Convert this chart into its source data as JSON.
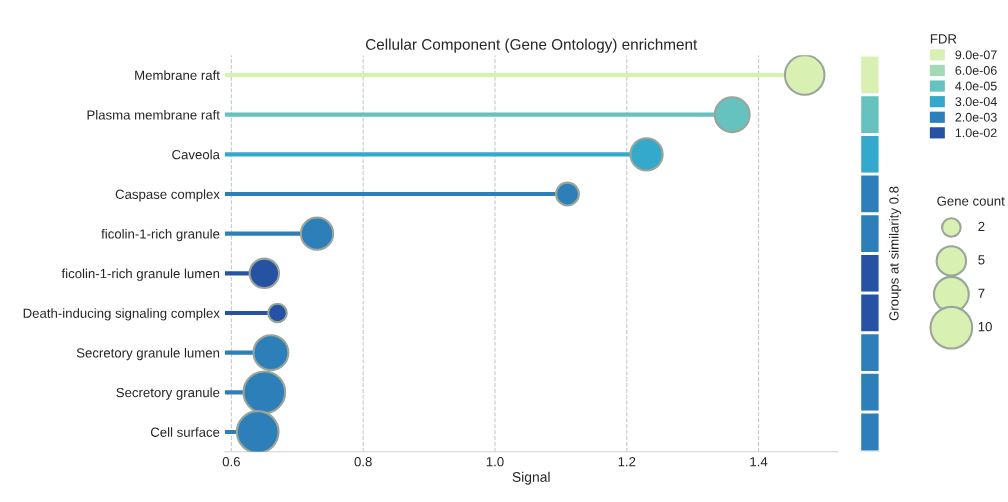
{
  "chart_data": {
    "type": "lollipop",
    "title": "Cellular Component (Gene Ontology) enrichment",
    "xlabel": "Signal",
    "orientation": "horizontal",
    "categories": [
      "Membrane raft",
      "Plasma membrane raft",
      "Caveola",
      "Caspase complex",
      "ficolin-1-rich granule",
      "ficolin-1-rich granule lumen",
      "Death-inducing signaling complex",
      "Secretory granule lumen",
      "Secretory granule",
      "Cell surface"
    ],
    "series": [
      {
        "name": "9.0e-07",
        "color": "#d9f0b3",
        "values": [
          1.47,
          null,
          null,
          null,
          null,
          null,
          null,
          null,
          null,
          null
        ],
        "sizes": [
          9,
          null,
          null,
          null,
          null,
          null,
          null,
          null,
          null,
          null
        ]
      },
      {
        "name": "6.0e-06",
        "color": "#a1dab4",
        "values": [
          null,
          null,
          null,
          null,
          null,
          null,
          null,
          null,
          null,
          null
        ]
      },
      {
        "name": "4.0e-05",
        "color": "#66c2be",
        "values": [
          null,
          1.36,
          null,
          null,
          null,
          null,
          null,
          null,
          null,
          null
        ],
        "sizes": [
          null,
          7,
          null,
          null,
          null,
          null,
          null,
          null,
          null,
          null
        ]
      },
      {
        "name": "3.0e-04",
        "color": "#35a9cc",
        "values": [
          null,
          null,
          1.23,
          null,
          null,
          null,
          null,
          null,
          null,
          null
        ],
        "sizes": [
          null,
          null,
          6,
          null,
          null,
          null,
          null,
          null,
          null,
          null
        ]
      },
      {
        "name": "2.0e-03",
        "color": "#2c7fb8",
        "values": [
          null,
          null,
          null,
          1.11,
          0.73,
          null,
          null,
          0.66,
          0.65,
          0.64
        ],
        "sizes": [
          null,
          null,
          null,
          3,
          6,
          null,
          null,
          7,
          10,
          10
        ]
      },
      {
        "name": "1.0e-02",
        "color": "#2552a3",
        "values": [
          null,
          null,
          null,
          null,
          null,
          0.65,
          0.67,
          null,
          null,
          null
        ],
        "sizes": [
          null,
          null,
          null,
          null,
          null,
          5,
          2,
          null,
          null,
          null
        ]
      }
    ],
    "size_legend": [
      2,
      5,
      7,
      10
    ],
    "legend_title": "FDR",
    "legend": "top right",
    "xlim": [
      0.59,
      1.52
    ],
    "xticks": [
      0.6,
      0.8,
      {
        "value": 1.0,
        "label": "1.0"
      },
      1.2,
      1.4
    ],
    "grid": "x",
    "annotations": [
      "Groups at similarity 0.8",
      "Gene count"
    ]
  }
}
